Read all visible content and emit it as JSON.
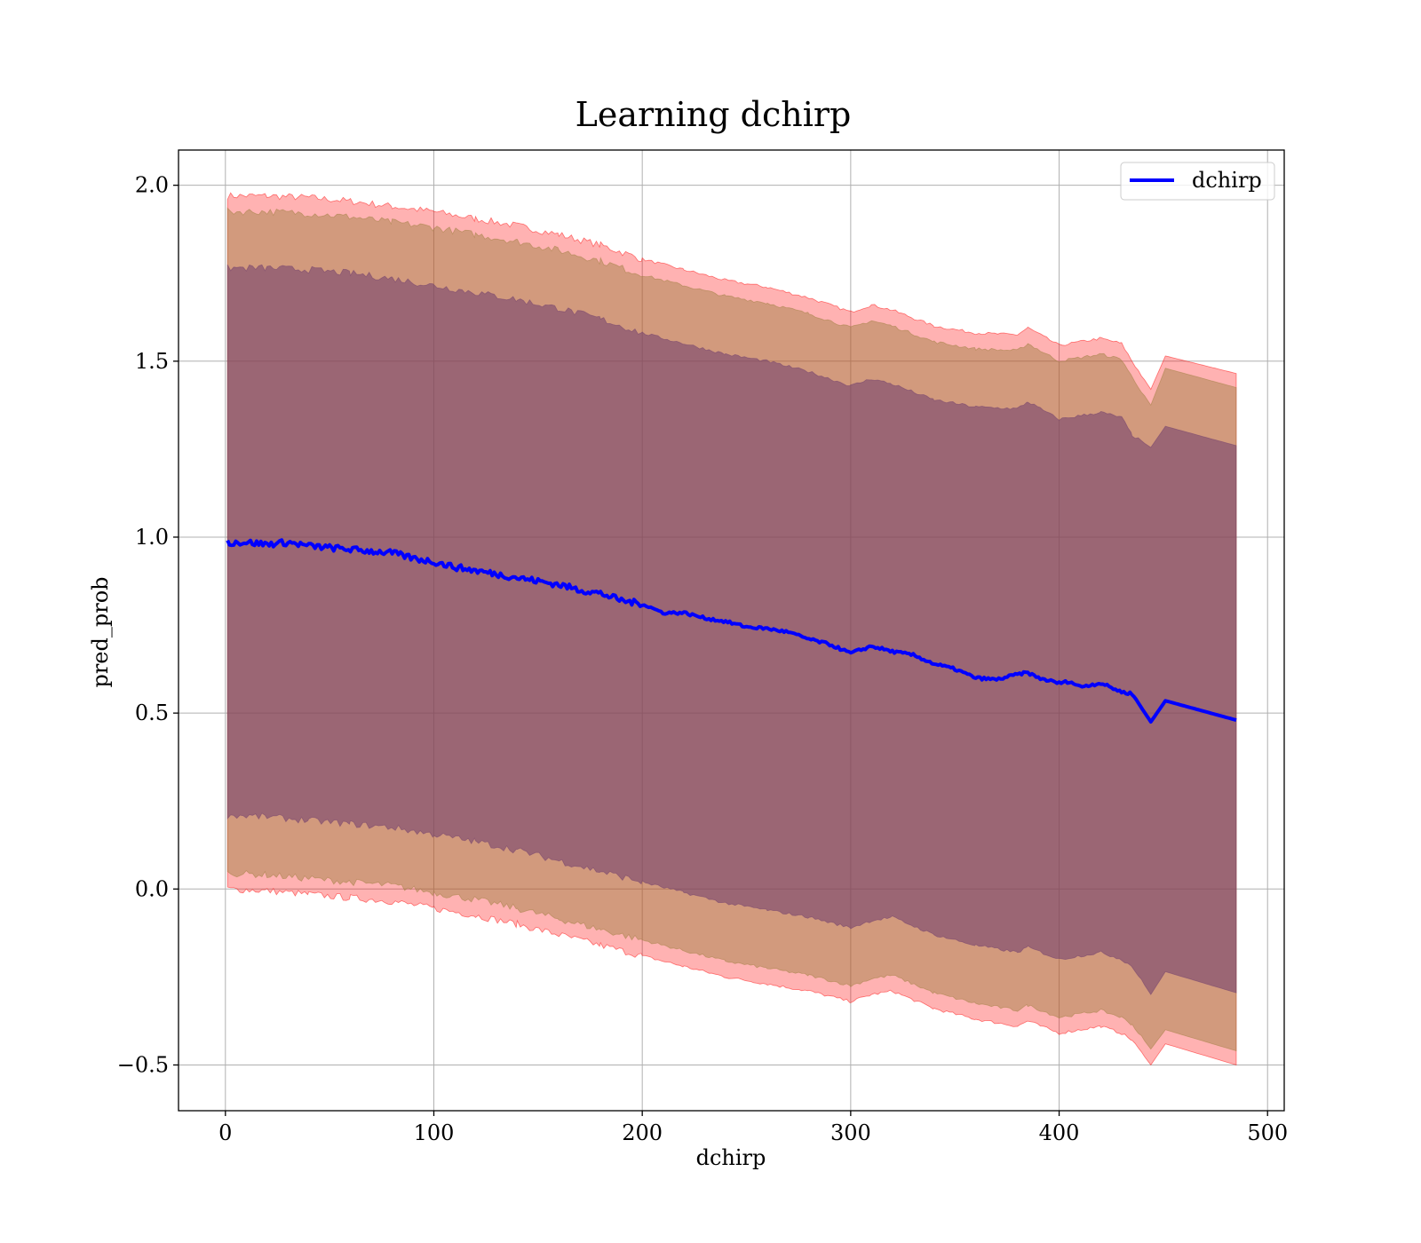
{
  "chart_data": {
    "type": "line",
    "title": "Learning dchirp",
    "xlabel": "dchirp",
    "ylabel": "pred_prob",
    "xlim": [
      -22.5,
      508
    ],
    "ylim": [
      -0.63,
      2.1
    ],
    "grid": true,
    "legend_position": "top-right",
    "x_ticks": [
      0,
      100,
      200,
      300,
      400,
      500
    ],
    "y_ticks": [
      -0.5,
      0.0,
      0.5,
      1.0,
      1.5,
      2.0
    ],
    "x_tick_labels": [
      "0",
      "100",
      "200",
      "300",
      "400",
      "500"
    ],
    "y_tick_labels": [
      "−0.5",
      "0.0",
      "0.5",
      "1.0",
      "1.5",
      "2.0"
    ],
    "series": [
      {
        "name": "dchirp",
        "color": "#0000ff",
        "x": [
          1,
          10,
          20,
          30,
          40,
          50,
          60,
          70,
          80,
          90,
          100,
          110,
          120,
          130,
          140,
          150,
          160,
          170,
          180,
          190,
          200,
          210,
          220,
          230,
          240,
          250,
          260,
          270,
          280,
          290,
          300,
          310,
          320,
          330,
          340,
          350,
          360,
          370,
          380,
          385,
          390,
          400,
          405,
          410,
          420,
          430,
          435,
          444,
          451,
          485
        ],
        "y": [
          0.985,
          0.985,
          0.98,
          0.985,
          0.975,
          0.97,
          0.965,
          0.96,
          0.955,
          0.94,
          0.93,
          0.915,
          0.905,
          0.895,
          0.885,
          0.875,
          0.865,
          0.85,
          0.84,
          0.82,
          0.81,
          0.785,
          0.785,
          0.77,
          0.76,
          0.745,
          0.74,
          0.73,
          0.71,
          0.695,
          0.67,
          0.69,
          0.675,
          0.665,
          0.64,
          0.625,
          0.6,
          0.595,
          0.61,
          0.615,
          0.6,
          0.585,
          0.59,
          0.575,
          0.585,
          0.56,
          0.555,
          0.475,
          0.535,
          0.48
        ]
      }
    ],
    "bands": [
      {
        "fill": "#ff0000",
        "opacity": 0.3,
        "x": [
          1,
          20,
          40,
          60,
          80,
          100,
          120,
          140,
          160,
          180,
          200,
          220,
          240,
          260,
          280,
          300,
          310,
          320,
          340,
          360,
          380,
          385,
          400,
          420,
          430,
          435,
          444,
          451,
          485
        ],
        "upper": [
          1.97,
          1.97,
          1.965,
          1.955,
          1.94,
          1.925,
          1.905,
          1.885,
          1.86,
          1.83,
          1.79,
          1.76,
          1.73,
          1.71,
          1.68,
          1.64,
          1.66,
          1.645,
          1.6,
          1.58,
          1.575,
          1.595,
          1.545,
          1.565,
          1.55,
          1.5,
          1.42,
          1.515,
          1.465
        ],
        "lower": [
          0.0,
          -0.005,
          -0.015,
          -0.025,
          -0.035,
          -0.055,
          -0.075,
          -0.1,
          -0.13,
          -0.16,
          -0.19,
          -0.22,
          -0.25,
          -0.27,
          -0.29,
          -0.32,
          -0.3,
          -0.29,
          -0.34,
          -0.37,
          -0.39,
          -0.375,
          -0.41,
          -0.39,
          -0.41,
          -0.43,
          -0.5,
          -0.44,
          -0.5
        ]
      },
      {
        "fill": "#9b7d3c",
        "opacity": 0.45,
        "x": [
          1,
          20,
          40,
          60,
          80,
          100,
          120,
          140,
          160,
          180,
          200,
          220,
          240,
          260,
          280,
          300,
          310,
          320,
          340,
          360,
          380,
          385,
          400,
          420,
          430,
          435,
          444,
          451,
          485
        ],
        "upper": [
          1.925,
          1.925,
          1.92,
          1.91,
          1.895,
          1.88,
          1.86,
          1.84,
          1.815,
          1.785,
          1.745,
          1.715,
          1.685,
          1.665,
          1.635,
          1.595,
          1.615,
          1.6,
          1.555,
          1.535,
          1.53,
          1.55,
          1.5,
          1.52,
          1.505,
          1.455,
          1.375,
          1.48,
          1.425
        ],
        "lower": [
          0.045,
          0.04,
          0.03,
          0.02,
          0.01,
          -0.01,
          -0.03,
          -0.055,
          -0.085,
          -0.115,
          -0.145,
          -0.175,
          -0.205,
          -0.225,
          -0.245,
          -0.275,
          -0.255,
          -0.245,
          -0.295,
          -0.325,
          -0.345,
          -0.33,
          -0.365,
          -0.345,
          -0.365,
          -0.385,
          -0.455,
          -0.4,
          -0.46
        ]
      },
      {
        "fill": "#6e3c6e",
        "opacity": 0.55,
        "x": [
          1,
          20,
          40,
          60,
          80,
          100,
          120,
          140,
          160,
          180,
          200,
          220,
          240,
          260,
          280,
          300,
          310,
          320,
          340,
          360,
          380,
          385,
          400,
          420,
          430,
          435,
          444,
          451,
          485
        ],
        "upper": [
          1.765,
          1.765,
          1.76,
          1.75,
          1.735,
          1.715,
          1.695,
          1.675,
          1.65,
          1.62,
          1.58,
          1.55,
          1.52,
          1.5,
          1.47,
          1.43,
          1.45,
          1.435,
          1.39,
          1.37,
          1.365,
          1.385,
          1.335,
          1.355,
          1.34,
          1.29,
          1.255,
          1.315,
          1.26
        ],
        "lower": [
          0.21,
          0.205,
          0.195,
          0.185,
          0.175,
          0.155,
          0.135,
          0.11,
          0.08,
          0.05,
          0.02,
          -0.01,
          -0.04,
          -0.06,
          -0.08,
          -0.11,
          -0.09,
          -0.08,
          -0.13,
          -0.16,
          -0.18,
          -0.165,
          -0.2,
          -0.18,
          -0.2,
          -0.22,
          -0.3,
          -0.235,
          -0.295
        ]
      }
    ]
  }
}
